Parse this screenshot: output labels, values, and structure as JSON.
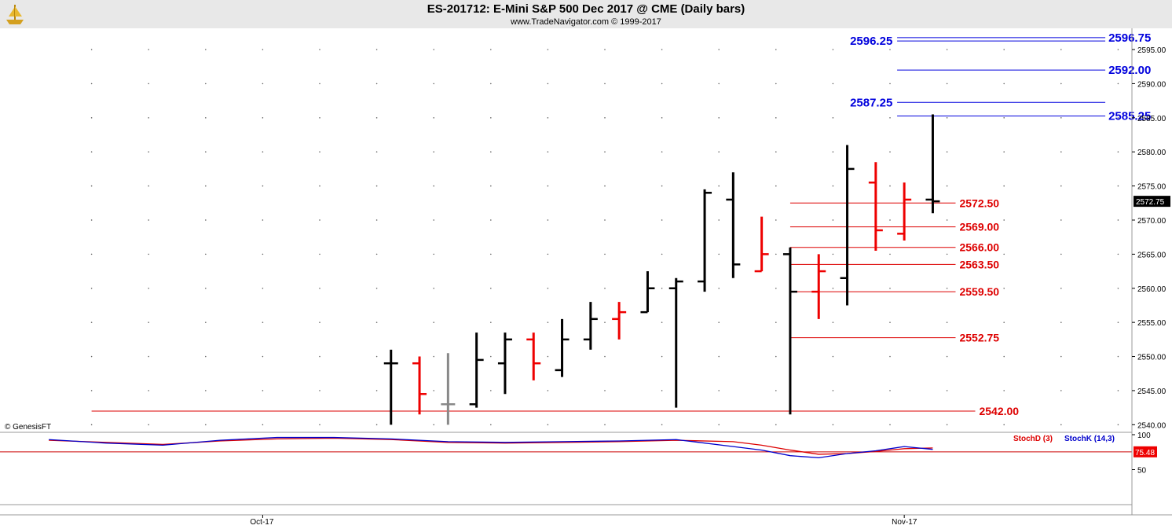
{
  "header": {
    "title": "ES-201712:  E-Mini S&P 500 Dec 2017 @ CME  (Daily bars)",
    "subtitle": "www.TradeNavigator.com © 1999-2017"
  },
  "watermark": "© GenesisFT",
  "colors": {
    "up_bar": "#000000",
    "down_bar": "#ee0000",
    "neutral_bar": "#888888",
    "resistance": "#0000dd",
    "support": "#dd0000",
    "stochD": "#dd0000",
    "stochK": "#0000cc"
  },
  "chart_data": [
    {
      "type": "ohlc",
      "title": "ES-201712:  E-Mini S&P 500 Dec 2017 @ CME  (Daily bars)",
      "x_labels": [
        "Oct-17",
        "Nov-17"
      ],
      "x_label_positions": [
        3.5,
        26
      ],
      "ylim": [
        2539,
        2598
      ],
      "y_ticks": [
        2540.0,
        2545.0,
        2550.0,
        2555.0,
        2560.0,
        2565.0,
        2570.0,
        2575.0,
        2580.0,
        2585.0,
        2590.0,
        2595.0
      ],
      "y_tick_labels": [
        "2540.00",
        "2545.00",
        "2550.00",
        "2555.00",
        "2560.00",
        "2565.00",
        "2570.00",
        "2575.00",
        "2580.00",
        "2585.00",
        "2590.00",
        "2595.00"
      ],
      "last_price": "2572.75",
      "bars": [
        {
          "i": 8,
          "o": 2549.0,
          "h": 2551.0,
          "l": 2540.0,
          "c": 2549.0,
          "color": "up"
        },
        {
          "i": 9,
          "o": 2549.0,
          "h": 2550.0,
          "l": 2541.5,
          "c": 2544.5,
          "color": "down"
        },
        {
          "i": 10,
          "o": 2543.0,
          "h": 2550.5,
          "l": 2540.0,
          "c": 2543.0,
          "color": "neutral"
        },
        {
          "i": 11,
          "o": 2543.0,
          "h": 2553.5,
          "l": 2542.5,
          "c": 2549.5,
          "color": "up"
        },
        {
          "i": 12,
          "o": 2549.0,
          "h": 2553.5,
          "l": 2544.5,
          "c": 2552.5,
          "color": "up"
        },
        {
          "i": 13,
          "o": 2552.5,
          "h": 2553.5,
          "l": 2546.5,
          "c": 2549.0,
          "color": "down"
        },
        {
          "i": 14,
          "o": 2548.0,
          "h": 2555.5,
          "l": 2547.0,
          "c": 2552.5,
          "color": "up"
        },
        {
          "i": 15,
          "o": 2552.5,
          "h": 2558.0,
          "l": 2551.0,
          "c": 2555.5,
          "color": "up"
        },
        {
          "i": 16,
          "o": 2555.5,
          "h": 2558.0,
          "l": 2552.5,
          "c": 2556.5,
          "color": "down"
        },
        {
          "i": 17,
          "o": 2556.5,
          "h": 2562.5,
          "l": 2556.5,
          "c": 2560.0,
          "color": "up"
        },
        {
          "i": 18,
          "o": 2560.0,
          "h": 2561.5,
          "l": 2542.5,
          "c": 2561.0,
          "color": "up"
        },
        {
          "i": 19,
          "o": 2561.0,
          "h": 2574.5,
          "l": 2559.5,
          "c": 2574.0,
          "color": "up"
        },
        {
          "i": 20,
          "o": 2573.0,
          "h": 2577.0,
          "l": 2561.5,
          "c": 2563.5,
          "color": "up"
        },
        {
          "i": 21,
          "o": 2562.5,
          "h": 2570.5,
          "l": 2562.5,
          "c": 2565.0,
          "color": "down"
        },
        {
          "i": 22,
          "o": 2565.0,
          "h": 2566.0,
          "l": 2541.5,
          "c": 2559.5,
          "color": "up"
        },
        {
          "i": 23,
          "o": 2559.5,
          "h": 2565.0,
          "l": 2555.5,
          "c": 2562.5,
          "color": "down"
        },
        {
          "i": 24,
          "o": 2561.5,
          "h": 2581.0,
          "l": 2557.5,
          "c": 2577.5,
          "color": "up"
        },
        {
          "i": 25,
          "o": 2575.5,
          "h": 2578.5,
          "l": 2565.5,
          "c": 2568.5,
          "color": "down"
        },
        {
          "i": 26,
          "o": 2568.0,
          "h": 2575.5,
          "l": 2567.0,
          "c": 2573.0,
          "color": "down"
        },
        {
          "i": 27,
          "o": 2573.0,
          "h": 2585.5,
          "l": 2571.0,
          "c": 2572.75,
          "color": "up"
        }
      ],
      "resistance_levels": [
        {
          "value": 2596.75,
          "label": "2596.75",
          "x0": 26
        },
        {
          "value": 2596.25,
          "label": "2596.25",
          "x0": 26
        },
        {
          "value": 2592.0,
          "label": "2592.00",
          "x0": 26
        },
        {
          "value": 2587.25,
          "label": "2587.25",
          "x0": 26
        },
        {
          "value": 2585.25,
          "label": "2585.25",
          "x0": 26
        }
      ],
      "support_levels": [
        {
          "value": 2572.5,
          "label": "2572.50",
          "x0": 22
        },
        {
          "value": 2569.0,
          "label": "2569.00",
          "x0": 22
        },
        {
          "value": 2566.0,
          "label": "2566.00",
          "x0": 22
        },
        {
          "value": 2563.5,
          "label": "2563.50",
          "x0": 22
        },
        {
          "value": 2559.5,
          "label": "2559.50",
          "x0": 22
        },
        {
          "value": 2552.75,
          "label": "2552.75",
          "x0": 22
        },
        {
          "value": 2542.0,
          "label": "2542.00",
          "x0": -2
        }
      ]
    },
    {
      "type": "line",
      "title": "",
      "ylim": [
        0,
        100
      ],
      "y_ticks": [
        50,
        100
      ],
      "y_tick_labels": [
        "50",
        "100"
      ],
      "reference_line": 75.48,
      "reference_label": "75.48",
      "series": [
        {
          "name": "StochD (3)",
          "x": [
            -4,
            -2,
            0,
            2,
            4,
            6,
            8,
            10,
            12,
            14,
            16,
            18,
            20,
            21,
            22,
            23,
            24,
            25,
            26,
            27
          ],
          "values": [
            92,
            89,
            86,
            91,
            94,
            95,
            93,
            89,
            88,
            89,
            90,
            92,
            90,
            85,
            78,
            72,
            73,
            76,
            80,
            81
          ]
        },
        {
          "name": "StochK (14,3)",
          "x": [
            -4,
            -2,
            0,
            2,
            4,
            6,
            8,
            10,
            12,
            14,
            16,
            18,
            20,
            21,
            22,
            23,
            24,
            25,
            26,
            27
          ],
          "values": [
            93,
            88,
            85,
            92,
            96,
            96,
            94,
            90,
            89,
            90,
            91,
            93,
            83,
            78,
            70,
            67,
            73,
            77,
            83,
            79
          ]
        }
      ]
    }
  ]
}
